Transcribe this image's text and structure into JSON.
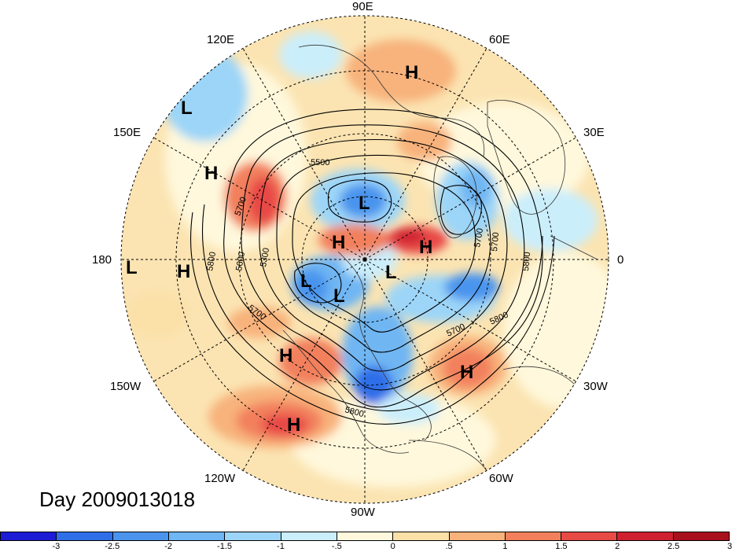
{
  "title": "Day 2009013018",
  "longitude_labels": [
    "90E",
    "60E",
    "30E",
    "0",
    "30W",
    "60W",
    "90W",
    "120W",
    "150W",
    "180",
    "150E",
    "120E"
  ],
  "pressure_systems": [
    {
      "type": "H",
      "id": "h-siberia-north"
    },
    {
      "type": "L",
      "id": "l-pacific-northwest"
    },
    {
      "type": "H",
      "id": "h-pacific-east-asia"
    },
    {
      "type": "L",
      "id": "l-arctic-siberia"
    },
    {
      "type": "H",
      "id": "h-arctic-center"
    },
    {
      "type": "H",
      "id": "h-arctic-europe"
    },
    {
      "type": "L",
      "id": "l-dateline"
    },
    {
      "type": "H",
      "id": "h-north-pacific"
    },
    {
      "type": "L",
      "id": "l-alaska"
    },
    {
      "type": "L",
      "id": "l-canada-west"
    },
    {
      "type": "L",
      "id": "l-greenland"
    },
    {
      "type": "H",
      "id": "h-western-us"
    },
    {
      "type": "H",
      "id": "h-atlantic"
    },
    {
      "type": "H",
      "id": "h-east-pacific"
    }
  ],
  "contour_labels": [
    "5500",
    "5700",
    "5700",
    "5600",
    "5300",
    "5800",
    "5700",
    "5700",
    "5800",
    "5800",
    "5800",
    "5700"
  ],
  "colorbar": {
    "colors": [
      "#1c1cd4",
      "#2f6ee8",
      "#4a94ee",
      "#6fb6f3",
      "#9cd5f8",
      "#cbeefb",
      "#fff8dc",
      "#fbe0a8",
      "#f8b27c",
      "#f2805d",
      "#e84a46",
      "#cf2030",
      "#a8101e"
    ],
    "ticks": [
      "-3",
      "-2.5",
      "-2",
      "-1.5",
      "-1",
      "-.5",
      "0",
      ".5",
      "1",
      "1.5",
      "2",
      "2.5",
      "3"
    ]
  }
}
